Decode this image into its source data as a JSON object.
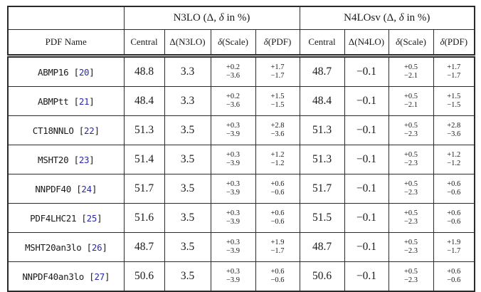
{
  "colors": {
    "text": "#1a1a1a",
    "border": "#2a2a2a",
    "citation_link": "#2a2ab0",
    "background": "#ffffff"
  },
  "table": {
    "groups": [
      {
        "pre": "N3LO (Δ, ",
        "italic": "δ",
        "post": " in %)"
      },
      {
        "pre": "N4LOsv (Δ, ",
        "italic": "δ",
        "post": " in %)"
      }
    ],
    "columns": [
      {
        "text": "PDF Name"
      },
      {
        "text": "Central"
      },
      {
        "text": "Δ(N3LO)"
      },
      {
        "italic": "δ",
        "text": "(Scale)"
      },
      {
        "italic": "δ",
        "text": "(PDF)"
      },
      {
        "text": "Central"
      },
      {
        "text": "Δ(N4LO)"
      },
      {
        "italic": "δ",
        "text": "(Scale)"
      },
      {
        "italic": "δ",
        "text": "(PDF)"
      }
    ],
    "citation_brackets": {
      "open": "[",
      "close": "]"
    },
    "rows": [
      {
        "name": "ABMP16",
        "cite": "20",
        "values": [
          "48.8",
          "3.3",
          {
            "up": "+0.2",
            "dn": "−3.6"
          },
          {
            "up": "+1.7",
            "dn": "−1.7"
          },
          "48.7",
          "−0.1",
          {
            "up": "+0.5",
            "dn": "−2.1"
          },
          {
            "up": "+1.7",
            "dn": "−1.7"
          }
        ]
      },
      {
        "name": "ABMPtt",
        "cite": "21",
        "values": [
          "48.4",
          "3.3",
          {
            "up": "+0.2",
            "dn": "−3.6"
          },
          {
            "up": "+1.5",
            "dn": "−1.5"
          },
          "48.4",
          "−0.1",
          {
            "up": "+0.5",
            "dn": "−2.1"
          },
          {
            "up": "+1.5",
            "dn": "−1.5"
          }
        ]
      },
      {
        "name": "CT18NNLO",
        "cite": "22",
        "values": [
          "51.3",
          "3.5",
          {
            "up": "+0.3",
            "dn": "−3.9"
          },
          {
            "up": "+2.8",
            "dn": "−3.6"
          },
          "51.3",
          "−0.1",
          {
            "up": "+0.5",
            "dn": "−2.3"
          },
          {
            "up": "+2.8",
            "dn": "−3.6"
          }
        ]
      },
      {
        "name": "MSHT20",
        "cite": "23",
        "values": [
          "51.4",
          "3.5",
          {
            "up": "+0.3",
            "dn": "−3.9"
          },
          {
            "up": "+1.2",
            "dn": "−1.2"
          },
          "51.3",
          "−0.1",
          {
            "up": "+0.5",
            "dn": "−2.3"
          },
          {
            "up": "+1.2",
            "dn": "−1.2"
          }
        ]
      },
      {
        "name": "NNPDF40",
        "cite": "24",
        "values": [
          "51.7",
          "3.5",
          {
            "up": "+0.3",
            "dn": "−3.9"
          },
          {
            "up": "+0.6",
            "dn": "−0.6"
          },
          "51.7",
          "−0.1",
          {
            "up": "+0.5",
            "dn": "−2.3"
          },
          {
            "up": "+0.6",
            "dn": "−0.6"
          }
        ]
      },
      {
        "name": "PDF4LHC21",
        "cite": "25",
        "values": [
          "51.6",
          "3.5",
          {
            "up": "+0.3",
            "dn": "−3.9"
          },
          {
            "up": "+0.6",
            "dn": "−0.6"
          },
          "51.5",
          "−0.1",
          {
            "up": "+0.5",
            "dn": "−2.3"
          },
          {
            "up": "+0.6",
            "dn": "−0.6"
          }
        ]
      },
      {
        "name": "MSHT20an3lo",
        "cite": "26",
        "values": [
          "48.7",
          "3.5",
          {
            "up": "+0.3",
            "dn": "−3.9"
          },
          {
            "up": "+1.9",
            "dn": "−1.7"
          },
          "48.7",
          "−0.1",
          {
            "up": "+0.5",
            "dn": "−2.3"
          },
          {
            "up": "+1.9",
            "dn": "−1.7"
          }
        ]
      },
      {
        "name": "NNPDF40an3lo",
        "cite": "27",
        "values": [
          "50.6",
          "3.5",
          {
            "up": "+0.3",
            "dn": "−3.9"
          },
          {
            "up": "+0.6",
            "dn": "−0.6"
          },
          "50.6",
          "−0.1",
          {
            "up": "+0.5",
            "dn": "−2.3"
          },
          {
            "up": "+0.6",
            "dn": "−0.6"
          }
        ]
      }
    ]
  }
}
